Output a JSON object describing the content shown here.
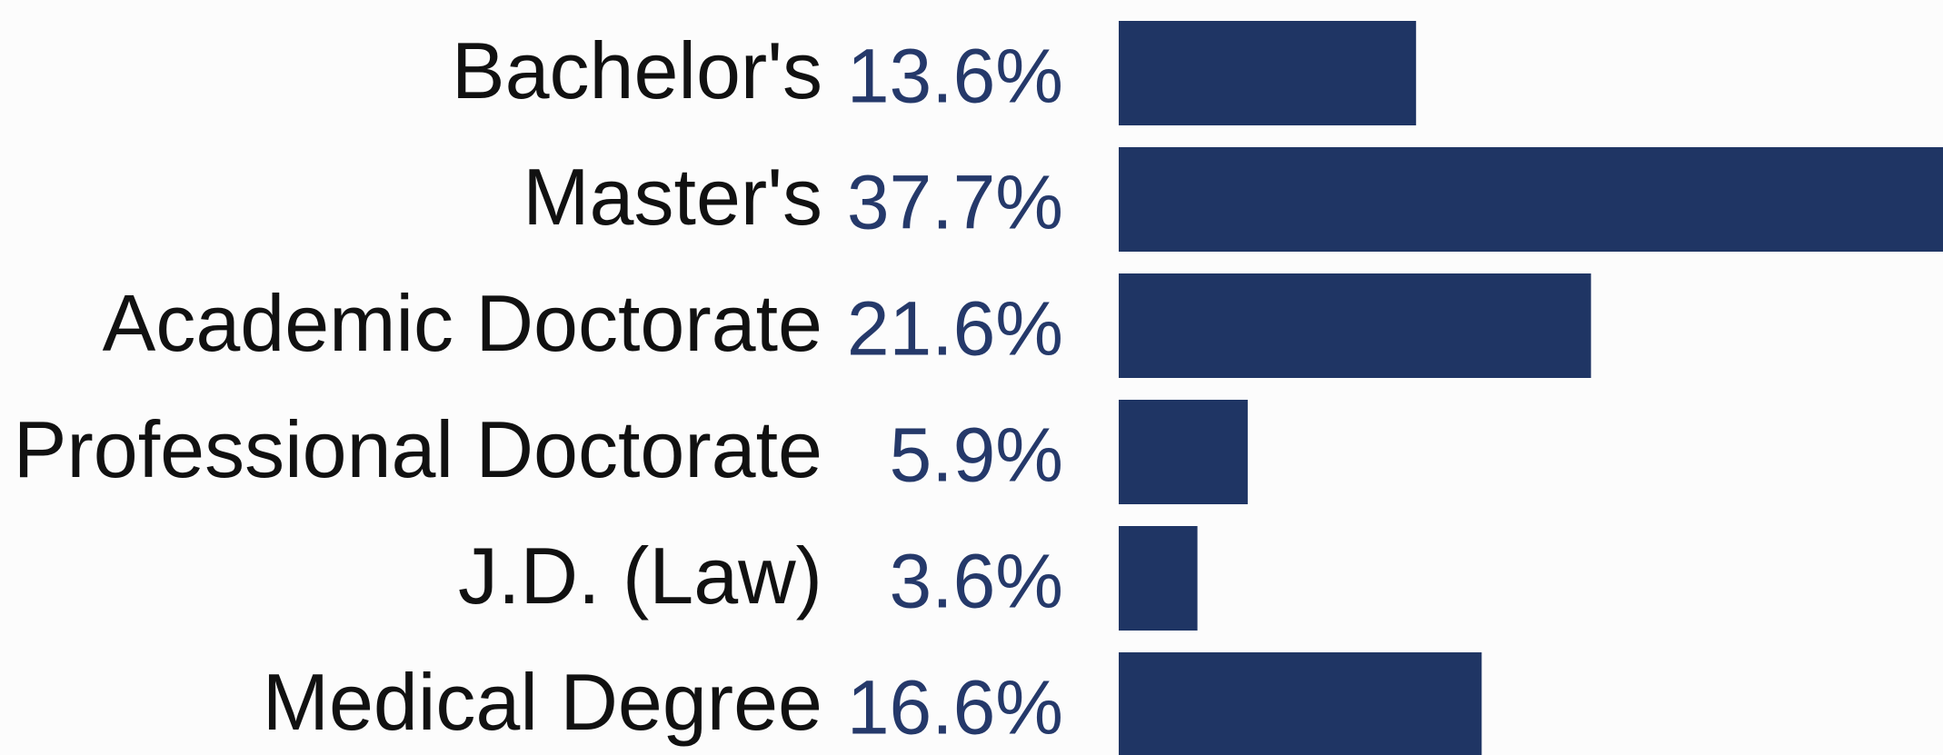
{
  "chart_data": {
    "type": "bar",
    "orientation": "horizontal",
    "categories": [
      "Bachelor's",
      "Master's",
      "Academic Doctorate",
      "Professional Doctorate",
      "J.D. (Law)",
      "Medical Degree"
    ],
    "values": [
      13.6,
      37.7,
      21.6,
      5.9,
      3.6,
      16.6
    ],
    "value_labels": [
      "13.6%",
      "37.7%",
      "21.6%",
      "5.9%",
      "3.6%",
      "16.6%"
    ],
    "color": "#1f3564"
  }
}
